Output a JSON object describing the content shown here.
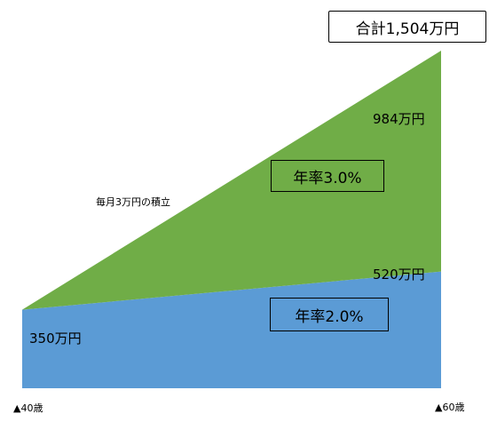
{
  "chart_data": {
    "type": "area",
    "x": [
      "40歳",
      "60歳"
    ],
    "series": [
      {
        "values": [
          350,
          520
        ],
        "color": "#5b9bd5"
      },
      {
        "values": [
          0,
          984
        ],
        "color": "#70ad47"
      }
    ],
    "total_label": "合計1,504万円",
    "rate_labels": {
      "upper": "年率3.0%",
      "lower": "年率2.0%"
    },
    "value_labels": {
      "start": "350万円",
      "upper_end": "984万円",
      "lower_end": "520万円"
    },
    "annotation": "毎月3万円の積立",
    "x_tick_labels": [
      "▲40歳",
      "▲60歳"
    ],
    "ylim": [
      0,
      1504
    ]
  }
}
